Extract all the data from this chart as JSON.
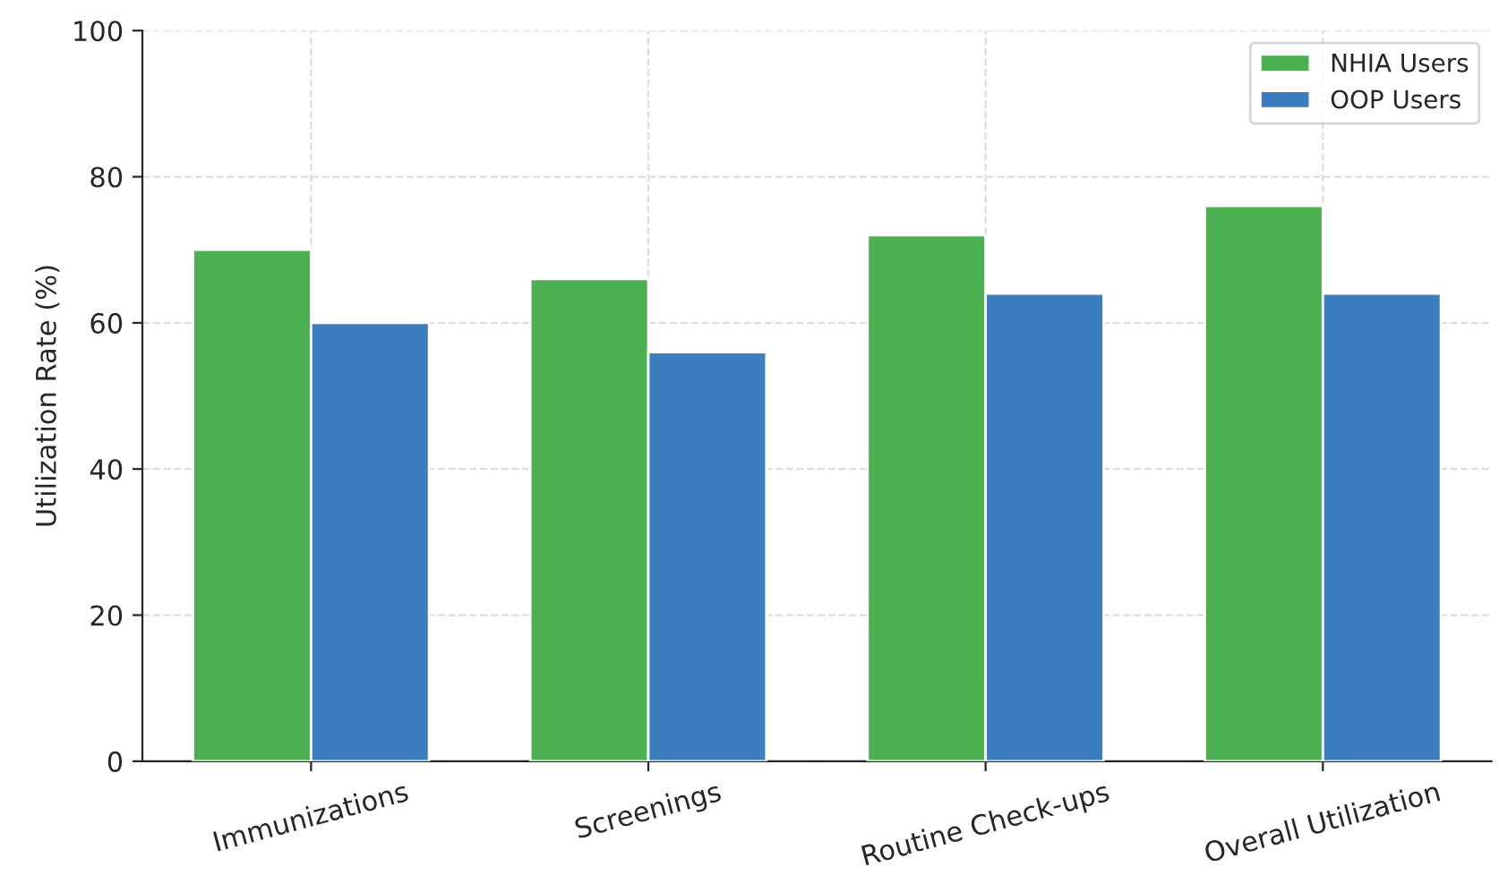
{
  "chart_data": {
    "type": "bar",
    "ylabel": "Utilization Rate (%)",
    "categories": [
      "Immunizations",
      "Screenings",
      "Routine Check-ups",
      "Overall Utilization"
    ],
    "series": [
      {
        "name": "NHIA Users",
        "color": "#4caf50",
        "values": [
          70,
          66,
          72,
          76
        ]
      },
      {
        "name": "OOP Users",
        "color": "#3a7ebf",
        "values": [
          60,
          56,
          64,
          64
        ]
      }
    ],
    "ylim": [
      0,
      100
    ],
    "yticks": [
      0,
      20,
      40,
      60,
      80,
      100
    ],
    "grid": true,
    "legend": "top right"
  }
}
